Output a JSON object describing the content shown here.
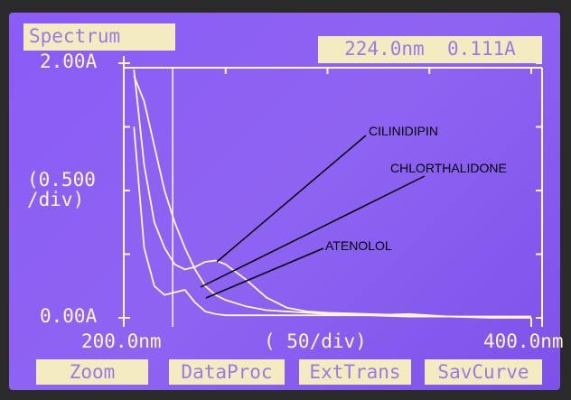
{
  "screen": {
    "title": "Spectrum",
    "buttons": [
      "Zoom",
      "DataProc",
      "ExtTrans",
      "SavCurve"
    ]
  },
  "chart_data": {
    "type": "line",
    "cursor": {
      "x": {
        "value": 224,
        "label": "224.0nm"
      },
      "y": {
        "value": 0.111,
        "label": "0.111A"
      }
    },
    "xlim": [
      200,
      400
    ],
    "ylim": [
      0,
      2
    ],
    "xticks": [
      {
        "value": 200,
        "label": "200.0nm"
      },
      {
        "value": 400,
        "label": "400.0nm"
      }
    ],
    "yticks": [
      {
        "value": 0,
        "label": "0.00A"
      },
      {
        "value": 2,
        "label": "2.00A"
      }
    ],
    "x_division": {
      "value": 50,
      "label": "( 50/div)"
    },
    "y_division": {
      "value": 0.5,
      "label": "(0.500 /div)"
    },
    "x": [
      205,
      210,
      215,
      220,
      225,
      230,
      235,
      240,
      245,
      250,
      260,
      270,
      280,
      290,
      300,
      320,
      340,
      360,
      380,
      400
    ],
    "series": [
      {
        "name": "CILINIDIPIN",
        "color": "#fff6cf",
        "values": [
          1.95,
          1.2,
          0.75,
          0.55,
          0.42,
          0.38,
          0.4,
          0.44,
          0.45,
          0.42,
          0.3,
          0.16,
          0.08,
          0.05,
          0.04,
          0.03,
          0.02,
          0.01,
          0.01,
          0.01
        ]
      },
      {
        "name": "CHLORTHALIDONE",
        "color": "#fff6cf",
        "values": [
          1.9,
          1.7,
          1.35,
          1.0,
          0.75,
          0.55,
          0.38,
          0.25,
          0.18,
          0.14,
          0.09,
          0.06,
          0.05,
          0.04,
          0.03,
          0.02,
          0.01,
          0.01,
          0,
          0
        ]
      },
      {
        "name": "ATENOLOL",
        "color": "#fff6cf",
        "values": [
          1.5,
          0.55,
          0.25,
          0.18,
          0.2,
          0.22,
          0.12,
          0.05,
          0.03,
          0.02,
          0.02,
          0.02,
          0.02,
          0.02,
          0.02,
          0.02,
          0.03,
          0.01,
          0.01,
          0.01
        ]
      }
    ]
  }
}
